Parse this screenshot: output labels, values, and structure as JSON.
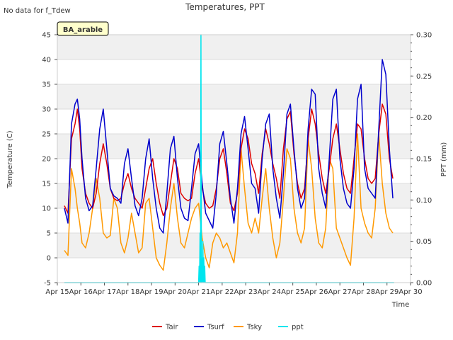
{
  "notice": "No data for f_Tdew",
  "chart_data": {
    "type": "line",
    "title": "Temperatures, PPT",
    "xlabel": "Time",
    "ylabel": "Temperature (C)",
    "y2label": "PPT (mm)",
    "site_label": "BA_arable",
    "xlim": [
      15,
      30
    ],
    "ylim": [
      -5,
      45
    ],
    "y2lim": [
      0.0,
      0.3
    ],
    "x_ticks": [
      15,
      16,
      17,
      18,
      19,
      20,
      21,
      22,
      23,
      24,
      25,
      26,
      27,
      28,
      29,
      30
    ],
    "x_tick_labels": [
      "Apr 15",
      "Apr 16",
      "Apr 17",
      "Apr 18",
      "Apr 19",
      "Apr 20",
      "Apr 21",
      "Apr 22",
      "Apr 23",
      "Apr 24",
      "Apr 25",
      "Apr 26",
      "Apr 27",
      "Apr 28",
      "Apr 29",
      "Apr 30"
    ],
    "y_ticks": [
      -5,
      0,
      5,
      10,
      15,
      20,
      25,
      30,
      35,
      40,
      45
    ],
    "y2_ticks": [
      0.0,
      0.05,
      0.1,
      0.15,
      0.2,
      0.25,
      0.3
    ],
    "y2_tick_labels": [
      "0.00",
      "0.05",
      "0.10",
      "0.15",
      "0.20",
      "0.25",
      "0.30"
    ],
    "grid": "horizontal bands",
    "legend_position": "bottom-center",
    "series": [
      {
        "name": "Tair",
        "color": "#dd0000",
        "axis": "left",
        "x": [
          15.3,
          15.45,
          15.6,
          15.75,
          15.85,
          15.95,
          16.05,
          16.2,
          16.35,
          16.5,
          16.65,
          16.8,
          16.95,
          17.1,
          17.25,
          17.4,
          17.55,
          17.7,
          17.85,
          18.0,
          18.15,
          18.3,
          18.45,
          18.6,
          18.75,
          18.9,
          19.05,
          19.2,
          19.35,
          19.5,
          19.65,
          19.8,
          19.95,
          20.1,
          20.25,
          20.4,
          20.55,
          20.7,
          20.85,
          21.0,
          21.15,
          21.3,
          21.45,
          21.6,
          21.75,
          21.9,
          22.05,
          22.2,
          22.35,
          22.5,
          22.65,
          22.8,
          22.95,
          23.1,
          23.25,
          23.4,
          23.55,
          23.7,
          23.85,
          24.0,
          24.15,
          24.3,
          24.45,
          24.6,
          24.75,
          24.9,
          25.05,
          25.2,
          25.35,
          25.5,
          25.65,
          25.8,
          25.95,
          26.1,
          26.25,
          26.4,
          26.55,
          26.7,
          26.85,
          27.0,
          27.15,
          27.3,
          27.45,
          27.6,
          27.75,
          27.9,
          28.05,
          28.2,
          28.35,
          28.5,
          28.65,
          28.8,
          28.95,
          29.1,
          29.25
        ],
        "y": [
          10.5,
          9.0,
          24.0,
          27.0,
          30.0,
          26.0,
          18.0,
          13.0,
          11.0,
          10.0,
          13.0,
          19.0,
          23.0,
          19.0,
          14.0,
          12.0,
          11.5,
          12.0,
          15.0,
          17.0,
          14.0,
          12.0,
          11.0,
          10.0,
          14.0,
          18.0,
          20.0,
          15.0,
          11.0,
          8.5,
          10.0,
          15.0,
          20.0,
          18.0,
          13.0,
          12.0,
          11.5,
          12.0,
          17.0,
          20.0,
          14.0,
          11.0,
          10.0,
          10.5,
          14.0,
          20.0,
          22.0,
          17.0,
          11.0,
          9.5,
          13.0,
          22.0,
          26.0,
          24.0,
          19.0,
          17.0,
          13.0,
          21.0,
          26.0,
          23.0,
          19.0,
          16.0,
          12.0,
          22.0,
          28.0,
          29.5,
          21.0,
          15.0,
          12.0,
          14.0,
          24.0,
          30.0,
          27.0,
          21.0,
          16.0,
          13.0,
          18.0,
          24.0,
          27.0,
          22.0,
          17.0,
          14.0,
          13.0,
          20.0,
          27.0,
          26.0,
          20.0,
          16.0,
          15.0,
          16.0,
          25.0,
          31.0,
          29.0,
          20.0,
          16.0
        ]
      },
      {
        "name": "Tsurf",
        "color": "#0000cc",
        "axis": "left",
        "x": [
          15.3,
          15.45,
          15.6,
          15.75,
          15.85,
          15.95,
          16.05,
          16.2,
          16.35,
          16.5,
          16.65,
          16.8,
          16.95,
          17.1,
          17.25,
          17.4,
          17.55,
          17.7,
          17.85,
          18.0,
          18.15,
          18.3,
          18.45,
          18.6,
          18.75,
          18.9,
          19.05,
          19.2,
          19.35,
          19.5,
          19.65,
          19.8,
          19.95,
          20.1,
          20.25,
          20.4,
          20.55,
          20.7,
          20.85,
          21.0,
          21.15,
          21.3,
          21.45,
          21.6,
          21.75,
          21.9,
          22.05,
          22.2,
          22.35,
          22.5,
          22.65,
          22.8,
          22.95,
          23.1,
          23.25,
          23.4,
          23.55,
          23.7,
          23.85,
          24.0,
          24.15,
          24.3,
          24.45,
          24.6,
          24.75,
          24.9,
          25.05,
          25.2,
          25.35,
          25.5,
          25.65,
          25.8,
          25.95,
          26.1,
          26.25,
          26.4,
          26.55,
          26.7,
          26.85,
          27.0,
          27.15,
          27.3,
          27.45,
          27.6,
          27.75,
          27.9,
          28.05,
          28.2,
          28.35,
          28.5,
          28.65,
          28.8,
          28.95,
          29.1,
          29.25
        ],
        "y": [
          10.0,
          7.0,
          27.0,
          31.0,
          32.0,
          28.0,
          20.0,
          12.0,
          9.5,
          10.5,
          18.0,
          26.0,
          30.0,
          22.0,
          14.0,
          12.5,
          12.0,
          11.0,
          19.0,
          22.0,
          16.0,
          10.5,
          8.5,
          12.0,
          20.0,
          24.0,
          16.0,
          10.0,
          6.0,
          5.0,
          13.0,
          22.0,
          24.5,
          16.0,
          10.0,
          8.0,
          7.5,
          14.0,
          21.0,
          23.0,
          15.0,
          9.0,
          7.5,
          6.0,
          13.0,
          23.0,
          25.5,
          19.0,
          12.0,
          7.0,
          14.0,
          25.0,
          28.5,
          22.0,
          15.0,
          14.0,
          9.0,
          20.0,
          27.0,
          29.0,
          18.0,
          12.0,
          8.0,
          17.0,
          29.0,
          31.0,
          22.0,
          14.0,
          10.0,
          12.0,
          26.0,
          34.0,
          33.0,
          18.0,
          13.0,
          10.0,
          20.0,
          32.0,
          34.0,
          20.0,
          14.0,
          11.0,
          10.0,
          18.0,
          32.0,
          35.0,
          18.0,
          14.0,
          13.0,
          12.0,
          26.0,
          40.0,
          37.0,
          22.0,
          12.0
        ]
      },
      {
        "name": "Tsky",
        "color": "#ff9900",
        "axis": "left",
        "x": [
          15.3,
          15.45,
          15.6,
          15.75,
          15.85,
          15.95,
          16.05,
          16.2,
          16.35,
          16.5,
          16.65,
          16.8,
          16.95,
          17.1,
          17.25,
          17.4,
          17.55,
          17.7,
          17.85,
          18.0,
          18.15,
          18.3,
          18.45,
          18.6,
          18.75,
          18.9,
          19.05,
          19.2,
          19.35,
          19.5,
          19.65,
          19.8,
          19.95,
          20.1,
          20.25,
          20.4,
          20.55,
          20.7,
          20.85,
          21.0,
          21.15,
          21.3,
          21.45,
          21.6,
          21.75,
          21.9,
          22.05,
          22.2,
          22.35,
          22.5,
          22.65,
          22.8,
          22.95,
          23.1,
          23.25,
          23.4,
          23.55,
          23.7,
          23.85,
          24.0,
          24.15,
          24.3,
          24.45,
          24.6,
          24.75,
          24.9,
          25.05,
          25.2,
          25.35,
          25.5,
          25.65,
          25.8,
          25.95,
          26.1,
          26.25,
          26.4,
          26.55,
          26.7,
          26.85,
          27.0,
          27.15,
          27.3,
          27.45,
          27.6,
          27.75,
          27.9,
          28.05,
          28.2,
          28.35,
          28.5,
          28.65,
          28.8,
          28.95,
          29.1,
          29.25
        ],
        "y": [
          1.5,
          0.5,
          18.0,
          14.0,
          10.0,
          7.0,
          3.0,
          2.0,
          5.0,
          10.0,
          16.0,
          12.0,
          5.0,
          4.0,
          4.5,
          12.0,
          10.0,
          3.0,
          1.0,
          4.0,
          9.0,
          5.0,
          1.0,
          2.0,
          11.0,
          12.0,
          6.0,
          0.0,
          -1.5,
          -2.5,
          3.0,
          10.0,
          15.0,
          8.0,
          3.0,
          2.0,
          5.0,
          8.0,
          10.0,
          11.0,
          4.0,
          0.0,
          -2.0,
          3.0,
          5.0,
          4.0,
          2.0,
          3.0,
          1.0,
          -1.0,
          5.0,
          22.0,
          14.0,
          7.0,
          5.0,
          8.0,
          5.0,
          12.0,
          18.0,
          10.0,
          4.0,
          0.0,
          3.0,
          12.0,
          22.0,
          20.0,
          10.0,
          5.0,
          3.0,
          6.0,
          24.0,
          18.0,
          8.0,
          3.0,
          2.0,
          6.0,
          20.0,
          18.0,
          6.0,
          4.0,
          2.0,
          0.0,
          -1.5,
          8.0,
          25.0,
          10.0,
          7.0,
          5.0,
          4.0,
          10.0,
          25.0,
          15.0,
          9.0,
          6.0,
          5.0
        ]
      },
      {
        "name": "ppt",
        "color": "#00e5ee",
        "axis": "right",
        "x": [
          15.3,
          21.0,
          21.02,
          21.04,
          21.06,
          21.08,
          21.1,
          21.12,
          21.14,
          21.16,
          21.18,
          21.2,
          21.22,
          21.24,
          21.26,
          21.28,
          21.3,
          29.3
        ],
        "y": [
          0.0,
          0.0,
          0.02,
          0.0,
          0.06,
          0.0,
          0.3,
          0.0,
          0.03,
          0.0,
          0.05,
          0.0,
          0.03,
          0.0,
          0.02,
          0.0,
          0.0,
          0.0
        ]
      }
    ]
  }
}
